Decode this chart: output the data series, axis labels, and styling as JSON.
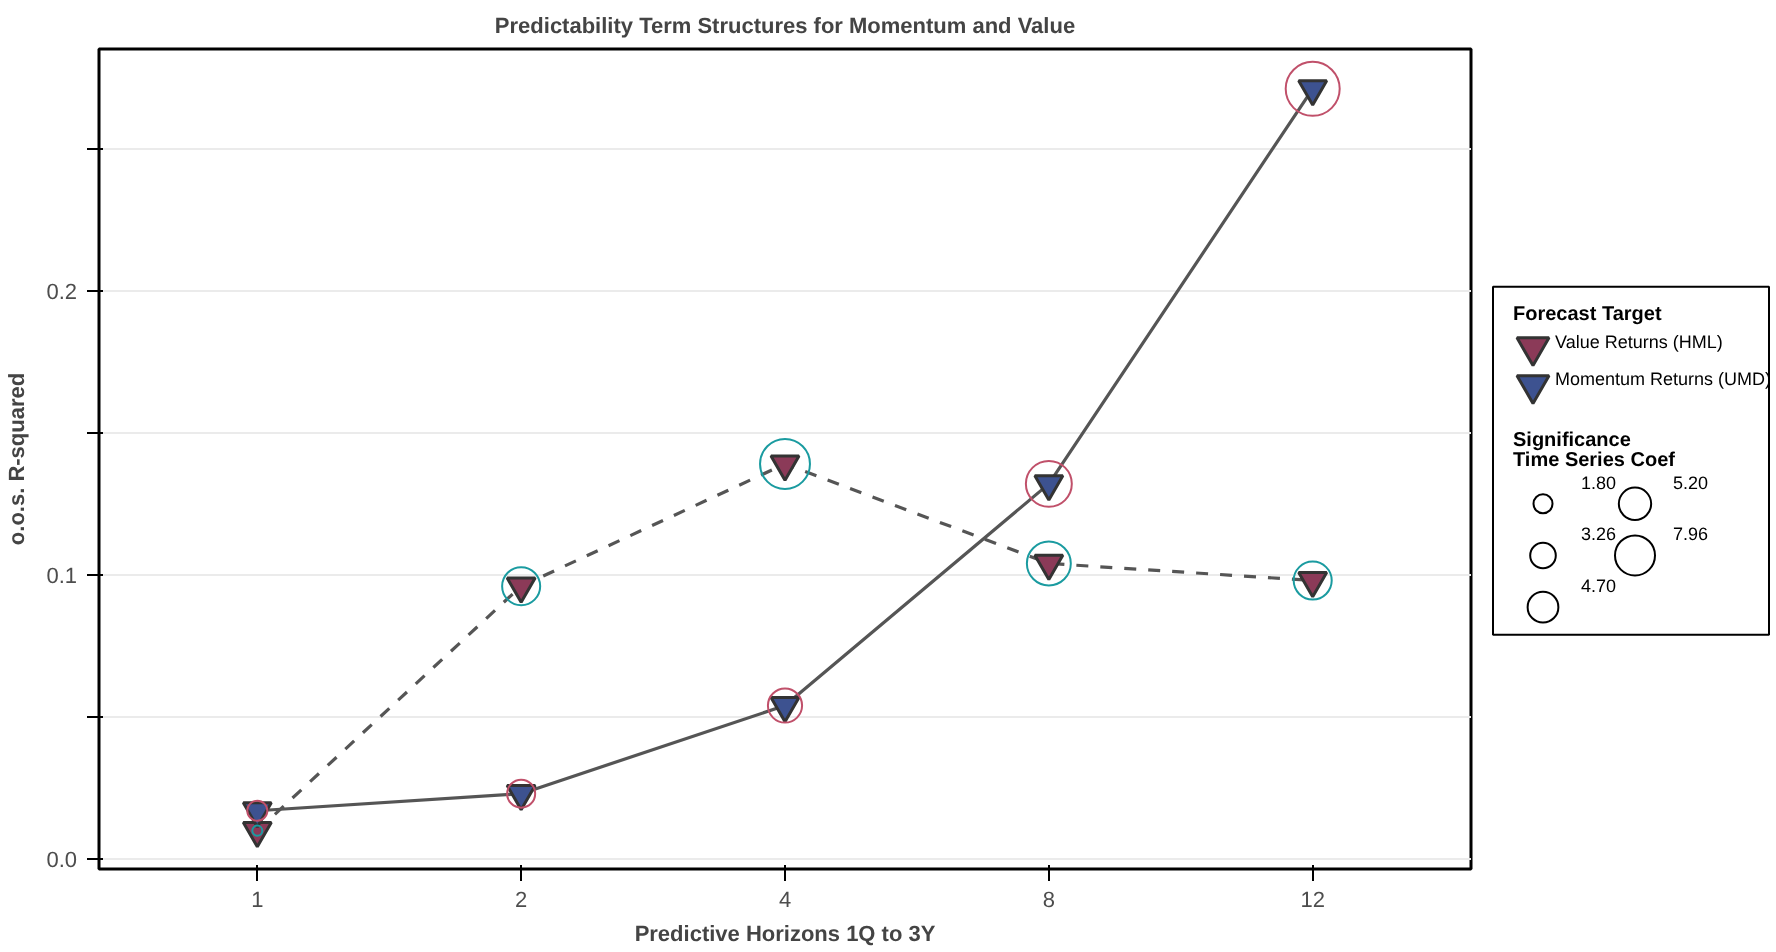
{
  "chart_data": {
    "type": "line",
    "title": "Predictability Term Structures for Momentum and Value",
    "xlabel": "Predictive Horizons 1Q to 3Y",
    "ylabel": "o.o.s. R-squared",
    "categories": [
      "1",
      "2",
      "4",
      "8",
      "12"
    ],
    "ylim": [
      -0.0035,
      0.285
    ],
    "yticks": [
      {
        "value": 0.0,
        "label": "0.0"
      },
      {
        "value": 0.05,
        "label": null
      },
      0.1,
      {
        "value": 0.15,
        "label": null
      },
      0.2,
      {
        "value": 0.25,
        "label": null
      }
    ],
    "grid": "y",
    "legend": "right",
    "legend_title": "Forecast Target",
    "marker": "triangle",
    "series": [
      {
        "name": "Value Returns (HML)",
        "color": "#8b3a58",
        "line_style": "dashed",
        "values": [
          0.01,
          0.096,
          0.139,
          0.104,
          0.098
        ]
      },
      {
        "name": "Momentum Returns (UMD)",
        "color": "#3d5290",
        "line_style": "solid",
        "values": [
          0.017,
          0.023,
          0.054,
          0.132,
          0.271
        ]
      },
      {
        "type": "bubble",
        "marker": "circle",
        "color": "#1a9ba0",
        "values": [
          0.01,
          0.096,
          0.139,
          0.104,
          0.098
        ],
        "sizes": [
          0.5,
          7.2,
          12.4,
          9.6,
          7.2
        ]
      },
      {
        "type": "bubble",
        "marker": "circle",
        "color": "#c0506a",
        "values": [
          0.017,
          0.023,
          0.054,
          0.132,
          0.271
        ],
        "sizes": [
          2.0,
          3.9,
          5.8,
          10.5,
          14.5
        ]
      }
    ],
    "size_legend": [
      {
        "value": 1.8,
        "label": "1.80"
      },
      {
        "value": 3.26,
        "label": "3.26"
      },
      {
        "value": 4.7,
        "label": "4.70"
      },
      {
        "value": 5.2,
        "label": "5.20"
      },
      {
        "value": 7.96,
        "label": "7.96"
      }
    ],
    "annotations": [
      "Significance\nTime Series Coef"
    ]
  }
}
